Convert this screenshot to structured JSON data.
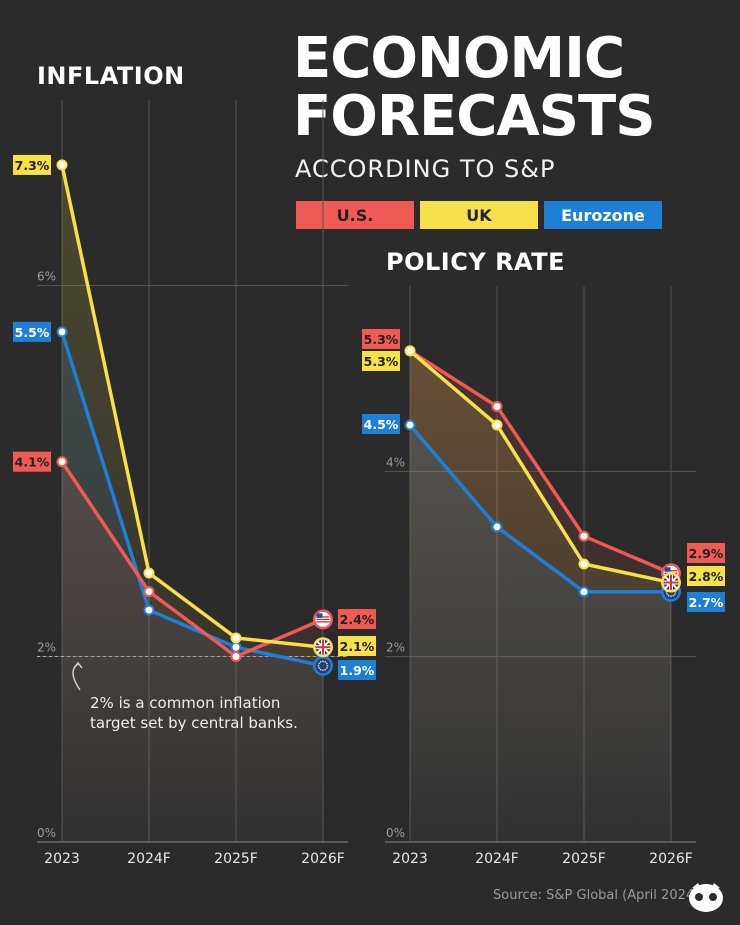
{
  "header": {
    "title": "ECONOMIC FORECASTS",
    "title_line1": "ECONOMIC",
    "title_line2": "FORECASTS",
    "subtitle": "ACCORDING TO S&P"
  },
  "legend": [
    {
      "label": "U.S.",
      "color": "#f05a54",
      "text_color": "#222222"
    },
    {
      "label": "UK",
      "color": "#f6e14a",
      "text_color": "#222222"
    },
    {
      "label": "Eurozone",
      "color": "#1e7fd6",
      "text_color": "#ffffff"
    }
  ],
  "note": {
    "line1": "2% is a common inflation",
    "line2": "target set by central banks."
  },
  "source": "Source: S&P Global (April 2024)",
  "chart_data": [
    {
      "type": "line",
      "title": "INFLATION",
      "categories": [
        "2023",
        "2024F",
        "2025F",
        "2026F"
      ],
      "ylim": [
        0,
        8
      ],
      "yticks": [
        0,
        2,
        6
      ],
      "ytick_labels": [
        "0%",
        "2%",
        "6%"
      ],
      "series": [
        {
          "name": "U.S.",
          "color": "#f05a54",
          "values": [
            4.1,
            2.7,
            2.0,
            2.4
          ],
          "end_label": "2.4%",
          "start_label": "4.1%",
          "icon": "us-flag-icon"
        },
        {
          "name": "UK",
          "color": "#f6e14a",
          "values": [
            7.3,
            2.9,
            2.2,
            2.1
          ],
          "end_label": "2.1%",
          "start_label": "7.3%",
          "icon": "uk-flag-icon"
        },
        {
          "name": "Eurozone",
          "color": "#1e7fd6",
          "values": [
            5.5,
            2.5,
            2.1,
            1.9
          ],
          "end_label": "1.9%",
          "start_label": "5.5%",
          "icon": "eu-flag-icon"
        }
      ],
      "reference_line": 2
    },
    {
      "type": "line",
      "title": "POLICY RATE",
      "categories": [
        "2023",
        "2024F",
        "2025F",
        "2026F"
      ],
      "ylim": [
        0,
        6
      ],
      "yticks": [
        0,
        2,
        4
      ],
      "ytick_labels": [
        "0%",
        "2%",
        "4%"
      ],
      "series": [
        {
          "name": "U.S.",
          "color": "#f05a54",
          "values": [
            5.3,
            4.7,
            3.3,
            2.9
          ],
          "end_label": "2.9%",
          "start_label": "5.3%",
          "icon": "us-flag-icon"
        },
        {
          "name": "UK",
          "color": "#f6e14a",
          "values": [
            5.3,
            4.5,
            3.0,
            2.8
          ],
          "end_label": "2.8%",
          "start_label": "5.3%",
          "icon": "uk-flag-icon"
        },
        {
          "name": "Eurozone",
          "color": "#1e7fd6",
          "values": [
            4.5,
            3.4,
            2.7,
            2.7
          ],
          "end_label": "2.7%",
          "start_label": "4.5%",
          "icon": "eu-flag-icon"
        }
      ]
    }
  ]
}
